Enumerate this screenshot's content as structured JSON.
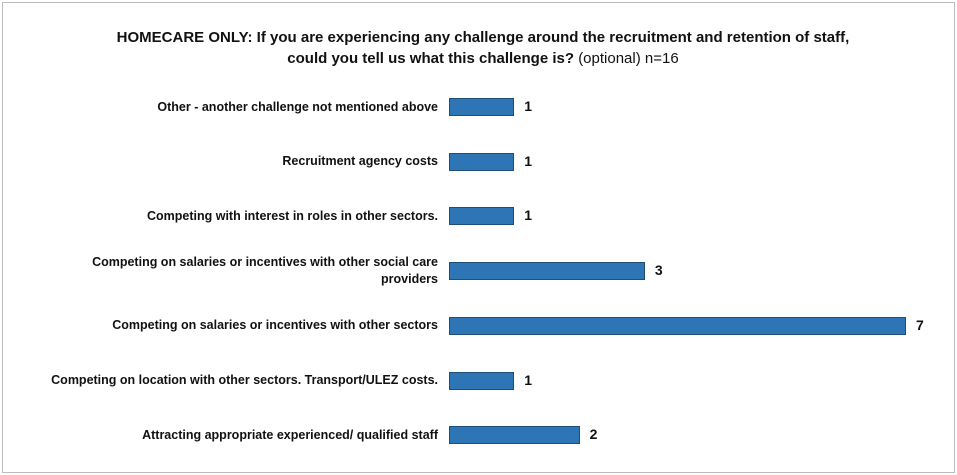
{
  "chart_data": {
    "type": "barh",
    "title": "HOMECARE ONLY: If you are experiencing any challenge around the recruitment and retention of staff, could you tell us what this challenge is?",
    "subtitle": "(optional) n=16",
    "categories": [
      "Other - another challenge not mentioned above",
      "Recruitment agency costs",
      "Competing with interest in roles in other sectors.",
      "Competing on salaries or incentives with other social care providers",
      "Competing on salaries or incentives with other sectors",
      "Competing on location with other sectors. Transport/ULEZ costs.",
      "Attracting appropriate experienced/ qualified staff"
    ],
    "values": [
      1,
      1,
      1,
      3,
      7,
      1,
      2
    ],
    "color": "#2e75b6"
  }
}
